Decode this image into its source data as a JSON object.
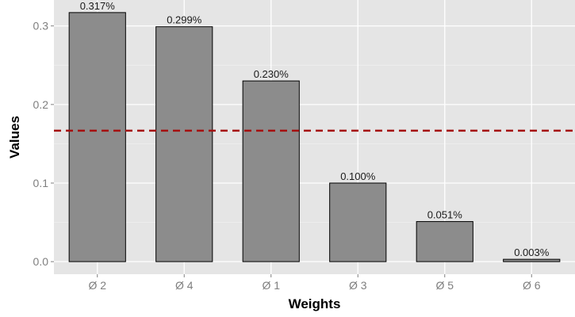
{
  "chart_data": {
    "type": "bar",
    "title": "",
    "xlabel": "Weights",
    "ylabel": "Values",
    "categories": [
      "Ø 2",
      "Ø 4",
      "Ø 1",
      "Ø 3",
      "Ø 5",
      "Ø 6"
    ],
    "values": [
      0.317,
      0.299,
      0.23,
      0.1,
      0.051,
      0.003
    ],
    "data_labels": [
      "0.317%",
      "0.299%",
      "0.230%",
      "0.100%",
      "0.051%",
      "0.003%"
    ],
    "ylim": [
      -0.016,
      0.333
    ],
    "yticks": [
      0.0,
      0.1,
      0.2,
      0.3
    ],
    "ytick_labels": [
      "0.0",
      "0.1",
      "0.2",
      "0.3"
    ],
    "reference_line": {
      "value": 0.1667,
      "style": "dashed",
      "color": "#a50f0f"
    },
    "grid": true,
    "legend": "none",
    "colors": {
      "panel_background": "#e5e5e5",
      "grid_major": "#ffffff",
      "grid_minor": "#f2f2f2",
      "bar_fill": "#8c8c8c",
      "bar_outline": "#000000"
    }
  }
}
